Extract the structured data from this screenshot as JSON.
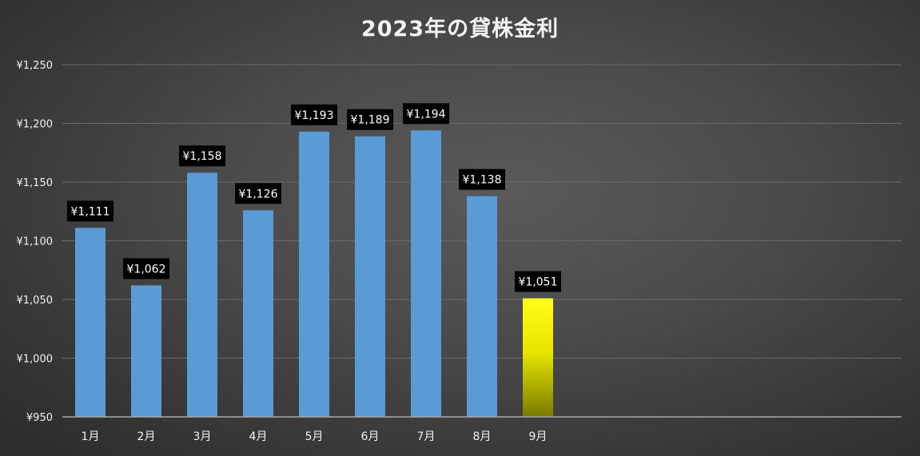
{
  "chart_data": {
    "type": "bar",
    "title": "2023年の貸株金利",
    "categories": [
      "1月",
      "2月",
      "3月",
      "4月",
      "5月",
      "6月",
      "7月",
      "8月",
      "9月"
    ],
    "values": [
      1111,
      1062,
      1158,
      1126,
      1193,
      1189,
      1194,
      1138,
      1051
    ],
    "value_labels": [
      "¥1,111",
      "¥1,062",
      "¥1,158",
      "¥1,126",
      "¥1,193",
      "¥1,189",
      "¥1,194",
      "¥1,138",
      "¥1,051"
    ],
    "ylim": [
      950,
      1250
    ],
    "yticks": [
      950,
      1000,
      1050,
      1100,
      1150,
      1200,
      1250
    ],
    "ytick_labels": [
      "¥950",
      "¥1,000",
      "¥1,050",
      "¥1,100",
      "¥1,150",
      "¥1,200",
      "¥1,250"
    ],
    "grid": true,
    "xlabel": "",
    "ylabel": "",
    "colors": {
      "bar": "#5b9bd5",
      "highlight_top": "#ffff1a",
      "highlight_bottom": "#7a7a00",
      "label_bg": "#000000",
      "text": "#f2f2f2",
      "grid": "#6a6a6a"
    },
    "highlight_index": 8
  }
}
